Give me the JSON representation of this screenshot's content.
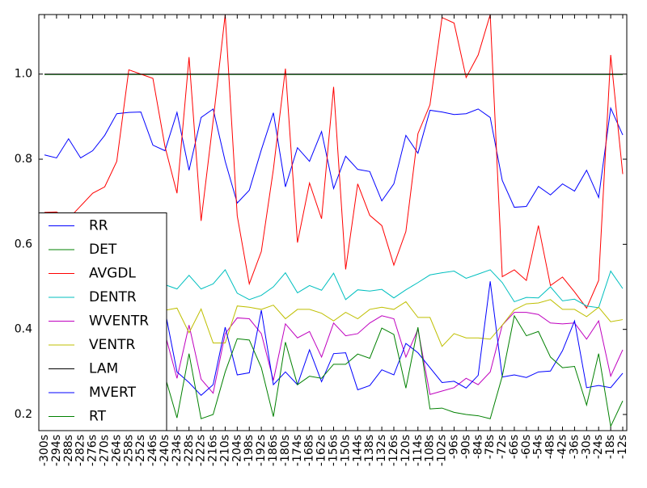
{
  "chart_data": {
    "type": "line",
    "categories": [
      "-300s",
      "-294s",
      "-288s",
      "-282s",
      "-276s",
      "-270s",
      "-264s",
      "-258s",
      "-252s",
      "-246s",
      "-240s",
      "-234s",
      "-228s",
      "-222s",
      "-216s",
      "-210s",
      "-204s",
      "-198s",
      "-192s",
      "-186s",
      "-180s",
      "-174s",
      "-168s",
      "-162s",
      "-156s",
      "-150s",
      "-144s",
      "-138s",
      "-132s",
      "-126s",
      "-120s",
      "-114s",
      "-108s",
      "-102s",
      "-96s",
      "-90s",
      "-84s",
      "-78s",
      "-72s",
      "-66s",
      "-60s",
      "-54s",
      "-48s",
      "-42s",
      "-36s",
      "-30s",
      "-24s",
      "-18s",
      "-12s"
    ],
    "ylim": [
      0.162,
      1.14
    ],
    "yticks": [
      0.2,
      0.4,
      0.6,
      0.8,
      {
        "value": 1,
        "label": "1.0"
      }
    ],
    "legend": "lower left",
    "series": [
      {
        "name": "RR",
        "color": "#0000ff",
        "values": [
          0.81,
          0.803,
          0.848,
          0.803,
          0.82,
          0.856,
          0.907,
          0.91,
          0.911,
          0.833,
          0.82,
          0.91,
          0.774,
          0.898,
          0.918,
          0.795,
          0.697,
          0.727,
          0.822,
          0.909,
          0.735,
          0.827,
          0.795,
          0.865,
          0.731,
          0.807,
          0.776,
          0.771,
          0.702,
          0.742,
          0.856,
          0.814,
          0.915,
          0.911,
          0.905,
          0.907,
          0.918,
          0.898,
          0.75,
          0.687,
          0.689,
          0.736,
          0.716,
          0.742,
          0.725,
          0.774,
          0.71,
          0.92,
          0.857
        ]
      },
      {
        "name": "DET",
        "color": "#008000",
        "values": [
          0.999,
          0.999,
          0.999,
          0.999,
          0.999,
          0.999,
          0.999,
          0.999,
          0.999,
          0.999,
          0.999,
          0.999,
          0.999,
          0.999,
          0.999,
          0.999,
          0.999,
          0.999,
          0.999,
          0.999,
          0.999,
          0.999,
          0.999,
          0.999,
          0.999,
          0.999,
          0.999,
          0.999,
          0.999,
          0.999,
          0.999,
          0.999,
          0.999,
          0.999,
          0.999,
          0.999,
          0.999,
          0.999,
          0.999,
          0.999,
          0.999,
          0.999,
          0.999,
          0.999,
          0.999,
          0.999,
          0.999,
          0.999,
          0.999
        ]
      },
      {
        "name": "AVGDL",
        "color": "#ff0000",
        "values": [
          0.675,
          0.676,
          0.66,
          0.69,
          0.72,
          0.735,
          0.795,
          1.01,
          1.0,
          0.99,
          0.83,
          0.72,
          1.04,
          0.655,
          0.89,
          1.14,
          0.667,
          0.507,
          0.583,
          0.776,
          1.013,
          0.604,
          0.744,
          0.66,
          0.97,
          0.541,
          0.742,
          0.668,
          0.644,
          0.551,
          0.63,
          0.86,
          0.928,
          1.133,
          1.12,
          0.992,
          1.045,
          1.14,
          0.524,
          0.54,
          0.515,
          0.644,
          0.503,
          0.523,
          0.488,
          0.45,
          0.515,
          1.045,
          0.765
        ]
      },
      {
        "name": "DENTR",
        "color": "#00bfbf",
        "values": [
          0.51,
          0.5,
          0.5,
          0.5,
          0.49,
          0.5,
          0.51,
          0.5,
          0.51,
          0.52,
          0.505,
          0.495,
          0.527,
          0.495,
          0.507,
          0.54,
          0.485,
          0.47,
          0.48,
          0.5,
          0.533,
          0.486,
          0.503,
          0.492,
          0.532,
          0.47,
          0.493,
          0.49,
          0.494,
          0.474,
          0.493,
          0.51,
          0.528,
          0.533,
          0.537,
          0.52,
          0.53,
          0.54,
          0.51,
          0.465,
          0.475,
          0.474,
          0.5,
          0.467,
          0.471,
          0.455,
          0.451,
          0.537,
          0.496
        ]
      },
      {
        "name": "WVENTR",
        "color": "#bf00bf",
        "values": [
          0.4,
          0.41,
          0.39,
          0.4,
          0.38,
          0.4,
          0.41,
          0.39,
          0.4,
          0.38,
          0.39,
          0.285,
          0.41,
          0.283,
          0.25,
          0.39,
          0.427,
          0.425,
          0.39,
          0.28,
          0.413,
          0.38,
          0.395,
          0.335,
          0.415,
          0.385,
          0.39,
          0.415,
          0.432,
          0.425,
          0.335,
          0.4,
          0.247,
          0.255,
          0.263,
          0.285,
          0.27,
          0.3,
          0.41,
          0.44,
          0.44,
          0.435,
          0.415,
          0.413,
          0.415,
          0.377,
          0.42,
          0.29,
          0.352
        ]
      },
      {
        "name": "VENTR",
        "color": "#bfbf00",
        "values": [
          0.44,
          0.44,
          0.43,
          0.44,
          0.44,
          0.45,
          0.44,
          0.44,
          0.45,
          0.44,
          0.445,
          0.45,
          0.392,
          0.448,
          0.368,
          0.368,
          0.455,
          0.452,
          0.447,
          0.457,
          0.425,
          0.447,
          0.447,
          0.438,
          0.42,
          0.44,
          0.425,
          0.447,
          0.452,
          0.447,
          0.465,
          0.428,
          0.428,
          0.36,
          0.39,
          0.38,
          0.38,
          0.377,
          0.41,
          0.446,
          0.46,
          0.462,
          0.47,
          0.447,
          0.447,
          0.43,
          0.452,
          0.418,
          0.423
        ]
      },
      {
        "name": "LAM",
        "color": "#000000",
        "values": [
          1,
          1,
          1,
          1,
          1,
          1,
          1,
          1,
          1,
          1,
          1,
          1,
          1,
          1,
          1,
          1,
          1,
          1,
          1,
          1,
          1,
          1,
          1,
          1,
          1,
          1,
          1,
          1,
          1,
          1,
          1,
          1,
          1,
          1,
          1,
          1,
          1,
          1,
          1,
          1,
          1,
          1,
          1,
          1,
          1,
          1,
          1,
          1,
          1
        ]
      },
      {
        "name": "MVERT",
        "color": "#0000ff",
        "values": [
          0.36,
          0.37,
          0.35,
          0.38,
          0.36,
          0.37,
          0.35,
          0.38,
          0.37,
          0.38,
          0.445,
          0.3,
          0.275,
          0.245,
          0.27,
          0.405,
          0.293,
          0.298,
          0.445,
          0.27,
          0.3,
          0.27,
          0.352,
          0.277,
          0.343,
          0.345,
          0.258,
          0.268,
          0.305,
          0.293,
          0.367,
          0.345,
          0.31,
          0.275,
          0.278,
          0.262,
          0.292,
          0.513,
          0.288,
          0.293,
          0.287,
          0.3,
          0.302,
          0.35,
          0.42,
          0.263,
          0.268,
          0.263,
          0.297
        ]
      },
      {
        "name": "RT",
        "color": "#008000",
        "values": [
          0.3,
          0.31,
          0.29,
          0.3,
          0.32,
          0.3,
          0.29,
          0.31,
          0.3,
          0.3,
          0.29,
          0.192,
          0.343,
          0.19,
          0.2,
          0.3,
          0.378,
          0.375,
          0.31,
          0.195,
          0.37,
          0.27,
          0.29,
          0.285,
          0.318,
          0.318,
          0.342,
          0.332,
          0.403,
          0.388,
          0.262,
          0.405,
          0.213,
          0.215,
          0.205,
          0.2,
          0.197,
          0.19,
          0.29,
          0.432,
          0.385,
          0.395,
          0.335,
          0.31,
          0.313,
          0.222,
          0.343,
          0.172,
          0.232
        ]
      }
    ]
  }
}
